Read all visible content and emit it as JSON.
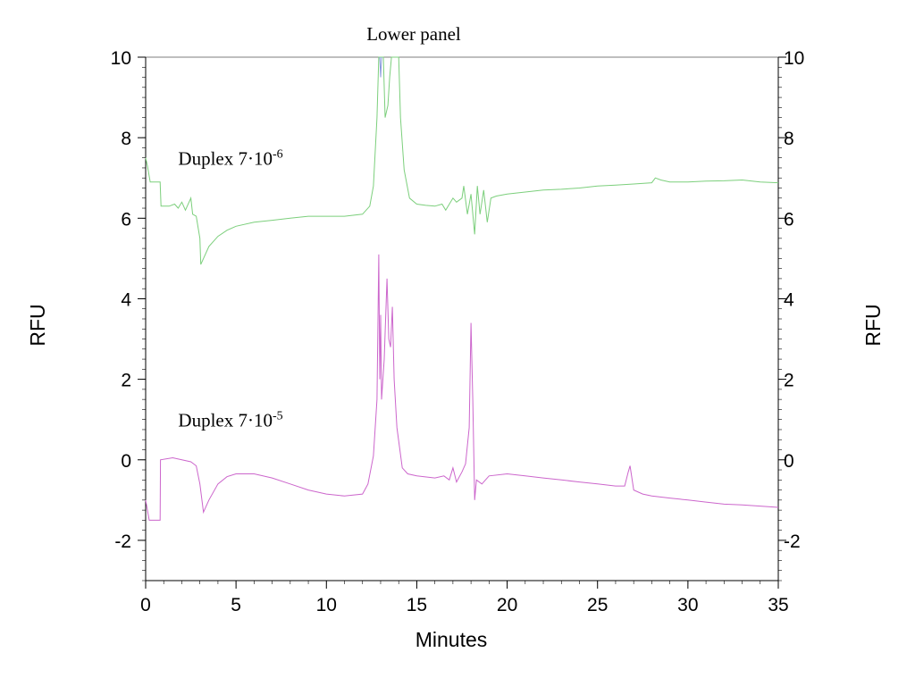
{
  "chart_data": {
    "type": "line",
    "title": "Lower panel",
    "xlabel": "Minutes",
    "ylabel_left": "RFU",
    "ylabel_right": "RFU",
    "xlim": [
      0,
      35
    ],
    "ylim": [
      -3,
      10
    ],
    "x_ticks": [
      "0",
      "5",
      "10",
      "15",
      "20",
      "25",
      "30",
      "35"
    ],
    "y_ticks": [
      "-2",
      "0",
      "2",
      "4",
      "6",
      "8",
      "10"
    ],
    "x_tick_values": [
      0,
      5,
      10,
      15,
      20,
      25,
      30,
      35
    ],
    "y_tick_values": [
      -2,
      0,
      2,
      4,
      6,
      8,
      10
    ],
    "annotations": [
      {
        "base": "Duplex 7·10",
        "exponent": "-6",
        "x": 1.8,
        "y": 7.5
      },
      {
        "base": "Duplex 7·10",
        "exponent": "-5",
        "x": 1.8,
        "y": 1.0
      }
    ],
    "series": [
      {
        "color": "#7ccf7c",
        "points": [
          [
            0.0,
            7.5
          ],
          [
            0.1,
            7.3
          ],
          [
            0.25,
            6.9
          ],
          [
            0.8,
            6.9
          ],
          [
            0.85,
            6.3
          ],
          [
            1.3,
            6.3
          ],
          [
            1.6,
            6.35
          ],
          [
            1.8,
            6.25
          ],
          [
            2.0,
            6.4
          ],
          [
            2.2,
            6.2
          ],
          [
            2.5,
            6.5
          ],
          [
            2.6,
            6.1
          ],
          [
            2.8,
            6.05
          ],
          [
            3.0,
            5.5
          ],
          [
            3.05,
            4.85
          ],
          [
            3.2,
            5.0
          ],
          [
            3.5,
            5.3
          ],
          [
            4.0,
            5.55
          ],
          [
            4.5,
            5.7
          ],
          [
            5.0,
            5.8
          ],
          [
            6.0,
            5.9
          ],
          [
            7.0,
            5.95
          ],
          [
            8.0,
            6.0
          ],
          [
            9.0,
            6.05
          ],
          [
            10.0,
            6.05
          ],
          [
            11.0,
            6.05
          ],
          [
            12.0,
            6.1
          ],
          [
            12.4,
            6.3
          ],
          [
            12.6,
            6.8
          ],
          [
            12.8,
            8.5
          ],
          [
            12.9,
            10.0
          ],
          [
            13.15,
            10.0
          ],
          [
            13.25,
            8.5
          ],
          [
            13.4,
            8.8
          ],
          [
            13.5,
            9.5
          ],
          [
            13.6,
            10.0
          ],
          [
            14.0,
            10.0
          ],
          [
            14.1,
            8.5
          ],
          [
            14.3,
            7.2
          ],
          [
            14.6,
            6.5
          ],
          [
            15.0,
            6.35
          ],
          [
            15.5,
            6.32
          ],
          [
            16.0,
            6.3
          ],
          [
            16.4,
            6.35
          ],
          [
            16.6,
            6.2
          ],
          [
            17.0,
            6.5
          ],
          [
            17.2,
            6.4
          ],
          [
            17.5,
            6.5
          ],
          [
            17.6,
            6.8
          ],
          [
            17.8,
            6.1
          ],
          [
            18.0,
            6.6
          ],
          [
            18.2,
            5.6
          ],
          [
            18.35,
            6.8
          ],
          [
            18.5,
            6.1
          ],
          [
            18.7,
            6.7
          ],
          [
            18.9,
            5.9
          ],
          [
            19.1,
            6.5
          ],
          [
            19.4,
            6.55
          ],
          [
            20.0,
            6.6
          ],
          [
            21.0,
            6.65
          ],
          [
            22.0,
            6.7
          ],
          [
            23.0,
            6.72
          ],
          [
            24.0,
            6.75
          ],
          [
            25.0,
            6.8
          ],
          [
            26.0,
            6.82
          ],
          [
            27.0,
            6.85
          ],
          [
            28.0,
            6.88
          ],
          [
            28.2,
            7.0
          ],
          [
            28.5,
            6.95
          ],
          [
            29.0,
            6.9
          ],
          [
            30.0,
            6.9
          ],
          [
            31.0,
            6.92
          ],
          [
            32.0,
            6.93
          ],
          [
            33.0,
            6.95
          ],
          [
            34.0,
            6.9
          ],
          [
            35.0,
            6.88
          ]
        ]
      },
      {
        "color": "#cc66cc",
        "points": [
          [
            0.0,
            -1.0
          ],
          [
            0.2,
            -1.5
          ],
          [
            0.5,
            -1.5
          ],
          [
            0.8,
            -1.5
          ],
          [
            0.82,
            0.0
          ],
          [
            1.5,
            0.05
          ],
          [
            2.0,
            0.0
          ],
          [
            2.5,
            -0.05
          ],
          [
            2.8,
            -0.15
          ],
          [
            3.0,
            -0.6
          ],
          [
            3.2,
            -1.3
          ],
          [
            3.5,
            -1.0
          ],
          [
            4.0,
            -0.6
          ],
          [
            4.5,
            -0.42
          ],
          [
            5.0,
            -0.35
          ],
          [
            6.0,
            -0.35
          ],
          [
            7.0,
            -0.45
          ],
          [
            8.0,
            -0.6
          ],
          [
            9.0,
            -0.75
          ],
          [
            10.0,
            -0.85
          ],
          [
            11.0,
            -0.9
          ],
          [
            12.0,
            -0.85
          ],
          [
            12.3,
            -0.6
          ],
          [
            12.6,
            0.1
          ],
          [
            12.8,
            1.5
          ],
          [
            12.9,
            5.1
          ],
          [
            12.95,
            2.0
          ],
          [
            13.0,
            3.6
          ],
          [
            13.05,
            1.5
          ],
          [
            13.2,
            2.5
          ],
          [
            13.35,
            4.5
          ],
          [
            13.45,
            3.0
          ],
          [
            13.55,
            2.8
          ],
          [
            13.65,
            3.8
          ],
          [
            13.75,
            2.0
          ],
          [
            13.9,
            0.8
          ],
          [
            14.2,
            -0.2
          ],
          [
            14.5,
            -0.35
          ],
          [
            15.0,
            -0.4
          ],
          [
            16.0,
            -0.45
          ],
          [
            16.5,
            -0.4
          ],
          [
            16.8,
            -0.5
          ],
          [
            17.0,
            -0.2
          ],
          [
            17.2,
            -0.55
          ],
          [
            17.5,
            -0.3
          ],
          [
            17.7,
            -0.1
          ],
          [
            17.9,
            0.8
          ],
          [
            18.0,
            3.4
          ],
          [
            18.1,
            1.5
          ],
          [
            18.2,
            -1.0
          ],
          [
            18.3,
            -0.5
          ],
          [
            18.6,
            -0.6
          ],
          [
            19.0,
            -0.4
          ],
          [
            20.0,
            -0.35
          ],
          [
            21.0,
            -0.4
          ],
          [
            22.0,
            -0.45
          ],
          [
            23.0,
            -0.5
          ],
          [
            24.0,
            -0.55
          ],
          [
            25.0,
            -0.6
          ],
          [
            26.0,
            -0.65
          ],
          [
            26.5,
            -0.65
          ],
          [
            26.7,
            -0.3
          ],
          [
            26.8,
            -0.15
          ],
          [
            27.0,
            -0.75
          ],
          [
            27.5,
            -0.85
          ],
          [
            28.0,
            -0.9
          ],
          [
            29.0,
            -0.95
          ],
          [
            30.0,
            -1.0
          ],
          [
            31.0,
            -1.05
          ],
          [
            32.0,
            -1.1
          ],
          [
            33.0,
            -1.12
          ],
          [
            34.0,
            -1.15
          ],
          [
            35.0,
            -1.18
          ]
        ]
      }
    ],
    "extra_traces": [
      {
        "color": "#8899dd",
        "points": [
          [
            12.95,
            10.0
          ],
          [
            13.0,
            9.5
          ],
          [
            13.05,
            10.0
          ]
        ]
      }
    ]
  }
}
